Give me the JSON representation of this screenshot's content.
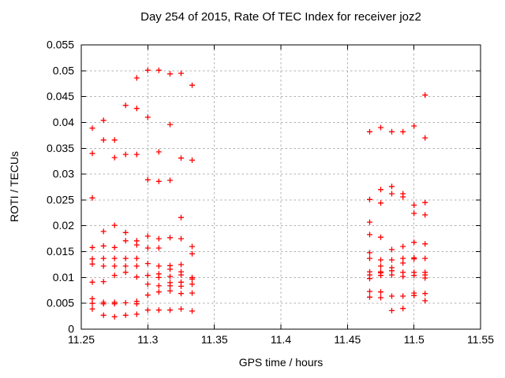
{
  "chart_data": {
    "type": "scatter",
    "title": "Day 254 of 2015, Rate Of TEC Index for receiver joz2",
    "xlabel": "GPS time / hours",
    "ylabel": "ROTI / TECUs",
    "xlim": [
      11.25,
      11.55
    ],
    "ylim": [
      0,
      0.055
    ],
    "xticks": [
      11.25,
      11.3,
      11.35,
      11.4,
      11.45,
      11.5,
      11.55
    ],
    "xtick_labels": [
      "11.25",
      "11.3",
      "11.35",
      "11.4",
      "11.45",
      "11.5",
      "11.55"
    ],
    "yticks": [
      0,
      0.005,
      0.01,
      0.015,
      0.02,
      0.025,
      0.03,
      0.035,
      0.04,
      0.045,
      0.05,
      0.055
    ],
    "ytick_labels": [
      "0",
      "0.005",
      "0.01",
      "0.015",
      "0.02",
      "0.025",
      "0.03",
      "0.035",
      "0.04",
      "0.045",
      "0.05",
      "0.055"
    ],
    "grid": true,
    "legend_position": "none",
    "marker": {
      "shape": "plus",
      "color": "#ff0000",
      "size": 7
    },
    "series": [
      {
        "name": "ROTI",
        "points": [
          [
            11.2583,
            0.0389
          ],
          [
            11.2583,
            0.034
          ],
          [
            11.2583,
            0.0254
          ],
          [
            11.2583,
            0.0158
          ],
          [
            11.2583,
            0.0136
          ],
          [
            11.2583,
            0.0126
          ],
          [
            11.2583,
            0.0091
          ],
          [
            11.2583,
            0.0059
          ],
          [
            11.2583,
            0.005
          ],
          [
            11.2583,
            0.0039
          ],
          [
            11.2667,
            0.0404
          ],
          [
            11.2667,
            0.0366
          ],
          [
            11.2667,
            0.0189
          ],
          [
            11.2667,
            0.0161
          ],
          [
            11.2667,
            0.0137
          ],
          [
            11.2667,
            0.0122
          ],
          [
            11.2667,
            0.0092
          ],
          [
            11.2667,
            0.0052
          ],
          [
            11.2667,
            0.0049
          ],
          [
            11.2667,
            0.0027
          ],
          [
            11.275,
            0.0366
          ],
          [
            11.275,
            0.0332
          ],
          [
            11.275,
            0.0201
          ],
          [
            11.275,
            0.0158
          ],
          [
            11.275,
            0.0137
          ],
          [
            11.275,
            0.0122
          ],
          [
            11.275,
            0.0104
          ],
          [
            11.275,
            0.0052
          ],
          [
            11.275,
            0.0049
          ],
          [
            11.275,
            0.0024
          ],
          [
            11.2833,
            0.0433
          ],
          [
            11.2833,
            0.0338
          ],
          [
            11.2833,
            0.0187
          ],
          [
            11.2833,
            0.0171
          ],
          [
            11.2833,
            0.0137
          ],
          [
            11.2833,
            0.0122
          ],
          [
            11.2833,
            0.011
          ],
          [
            11.2833,
            0.0051
          ],
          [
            11.2833,
            0.0027
          ],
          [
            11.2917,
            0.0486
          ],
          [
            11.2917,
            0.0427
          ],
          [
            11.2917,
            0.0338
          ],
          [
            11.2917,
            0.0171
          ],
          [
            11.2917,
            0.0163
          ],
          [
            11.2917,
            0.0137
          ],
          [
            11.2917,
            0.0122
          ],
          [
            11.2917,
            0.0101
          ],
          [
            11.2917,
            0.0054
          ],
          [
            11.2917,
            0.0049
          ],
          [
            11.2917,
            0.0029
          ],
          [
            11.3,
            0.0501
          ],
          [
            11.3,
            0.041
          ],
          [
            11.3,
            0.0289
          ],
          [
            11.3,
            0.018
          ],
          [
            11.3,
            0.0157
          ],
          [
            11.3,
            0.0127
          ],
          [
            11.3,
            0.0104
          ],
          [
            11.3,
            0.0087
          ],
          [
            11.3,
            0.0066
          ],
          [
            11.3,
            0.0037
          ],
          [
            11.3083,
            0.0501
          ],
          [
            11.3083,
            0.0343
          ],
          [
            11.3083,
            0.0286
          ],
          [
            11.3083,
            0.0175
          ],
          [
            11.3083,
            0.0157
          ],
          [
            11.3083,
            0.0122
          ],
          [
            11.3083,
            0.0107
          ],
          [
            11.3083,
            0.01
          ],
          [
            11.3083,
            0.0084
          ],
          [
            11.3083,
            0.0072
          ],
          [
            11.3083,
            0.0037
          ],
          [
            11.3167,
            0.0494
          ],
          [
            11.3167,
            0.0396
          ],
          [
            11.3167,
            0.0288
          ],
          [
            11.3167,
            0.0177
          ],
          [
            11.3167,
            0.0123
          ],
          [
            11.3167,
            0.0116
          ],
          [
            11.3167,
            0.0102
          ],
          [
            11.3167,
            0.009
          ],
          [
            11.3167,
            0.0084
          ],
          [
            11.3167,
            0.0074
          ],
          [
            11.3167,
            0.0037
          ],
          [
            11.325,
            0.0495
          ],
          [
            11.325,
            0.0331
          ],
          [
            11.325,
            0.0216
          ],
          [
            11.325,
            0.0175
          ],
          [
            11.325,
            0.0125
          ],
          [
            11.325,
            0.0111
          ],
          [
            11.325,
            0.0105
          ],
          [
            11.325,
            0.0091
          ],
          [
            11.325,
            0.0083
          ],
          [
            11.325,
            0.0069
          ],
          [
            11.325,
            0.0039
          ],
          [
            11.3333,
            0.0472
          ],
          [
            11.3333,
            0.0327
          ],
          [
            11.3333,
            0.016
          ],
          [
            11.3333,
            0.0146
          ],
          [
            11.3333,
            0.01
          ],
          [
            11.3333,
            0.0097
          ],
          [
            11.3333,
            0.0087
          ],
          [
            11.3333,
            0.007
          ],
          [
            11.3333,
            0.0035
          ],
          [
            11.4667,
            0.0382
          ],
          [
            11.4667,
            0.0251
          ],
          [
            11.4667,
            0.0207
          ],
          [
            11.4667,
            0.0183
          ],
          [
            11.4667,
            0.0148
          ],
          [
            11.4667,
            0.0137
          ],
          [
            11.4667,
            0.0111
          ],
          [
            11.4667,
            0.0105
          ],
          [
            11.4667,
            0.0098
          ],
          [
            11.4667,
            0.0073
          ],
          [
            11.4667,
            0.0062
          ],
          [
            11.475,
            0.039
          ],
          [
            11.475,
            0.027
          ],
          [
            11.475,
            0.0244
          ],
          [
            11.475,
            0.0178
          ],
          [
            11.475,
            0.0134
          ],
          [
            11.475,
            0.0122
          ],
          [
            11.475,
            0.0111
          ],
          [
            11.475,
            0.0109
          ],
          [
            11.475,
            0.0104
          ],
          [
            11.475,
            0.0072
          ],
          [
            11.475,
            0.0061
          ],
          [
            11.4833,
            0.0382
          ],
          [
            11.4833,
            0.0276
          ],
          [
            11.4833,
            0.0262
          ],
          [
            11.4833,
            0.0154
          ],
          [
            11.4833,
            0.0134
          ],
          [
            11.4833,
            0.0119
          ],
          [
            11.4833,
            0.0113
          ],
          [
            11.4833,
            0.0105
          ],
          [
            11.4833,
            0.0064
          ],
          [
            11.4833,
            0.0036
          ],
          [
            11.4917,
            0.0382
          ],
          [
            11.4917,
            0.0262
          ],
          [
            11.4917,
            0.0256
          ],
          [
            11.4917,
            0.016
          ],
          [
            11.4917,
            0.0137
          ],
          [
            11.4917,
            0.0128
          ],
          [
            11.4917,
            0.011
          ],
          [
            11.4917,
            0.0102
          ],
          [
            11.4917,
            0.0064
          ],
          [
            11.4917,
            0.004
          ],
          [
            11.5,
            0.0393
          ],
          [
            11.5,
            0.024
          ],
          [
            11.5,
            0.0224
          ],
          [
            11.5,
            0.0168
          ],
          [
            11.5,
            0.0138
          ],
          [
            11.5,
            0.0136
          ],
          [
            11.5,
            0.011
          ],
          [
            11.5,
            0.0104
          ],
          [
            11.5,
            0.007
          ],
          [
            11.5,
            0.0065
          ],
          [
            11.5083,
            0.0453
          ],
          [
            11.5083,
            0.037
          ],
          [
            11.5083,
            0.0245
          ],
          [
            11.5083,
            0.0221
          ],
          [
            11.5083,
            0.0165
          ],
          [
            11.5083,
            0.0137
          ],
          [
            11.5083,
            0.011
          ],
          [
            11.5083,
            0.0105
          ],
          [
            11.5083,
            0.0099
          ],
          [
            11.5083,
            0.0069
          ],
          [
            11.5083,
            0.0055
          ]
        ]
      }
    ],
    "colors": {
      "marker": "#ff0000",
      "grid": "#b0b0b0",
      "axis": "#000000",
      "background": "#ffffff"
    }
  }
}
